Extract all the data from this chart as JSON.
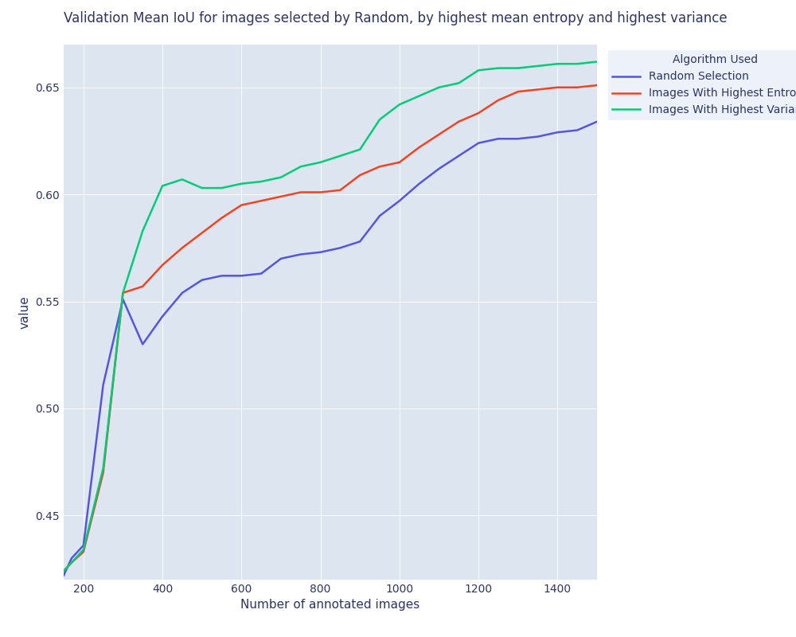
{
  "title": "Validation Mean IoU for images selected by Random, by highest mean entropy and highest variance",
  "xlabel": "Number of annotated images",
  "ylabel": "value",
  "legend_title": "Algorithm Used",
  "random": {
    "label": "Random Selection",
    "color": "#5555dd",
    "x": [
      150,
      170,
      200,
      250,
      300,
      350,
      400,
      450,
      500,
      550,
      600,
      650,
      700,
      750,
      800,
      850,
      900,
      950,
      1000,
      1050,
      1100,
      1150,
      1200,
      1250,
      1300,
      1350,
      1400,
      1450,
      1500
    ],
    "y": [
      0.422,
      0.43,
      0.436,
      0.511,
      0.551,
      0.53,
      0.543,
      0.554,
      0.56,
      0.562,
      0.562,
      0.563,
      0.57,
      0.572,
      0.573,
      0.575,
      0.578,
      0.59,
      0.597,
      0.605,
      0.612,
      0.618,
      0.624,
      0.626,
      0.626,
      0.627,
      0.629,
      0.63,
      0.634
    ]
  },
  "entropy": {
    "label": "Images With Highest Entropies",
    "color": "#ee4422",
    "x": [
      150,
      170,
      200,
      250,
      300,
      350,
      400,
      450,
      500,
      550,
      600,
      650,
      700,
      750,
      800,
      850,
      900,
      950,
      1000,
      1050,
      1100,
      1150,
      1200,
      1250,
      1300,
      1350,
      1400,
      1450,
      1500
    ],
    "y": [
      0.424,
      0.428,
      0.433,
      0.47,
      0.554,
      0.557,
      0.567,
      0.575,
      0.582,
      0.589,
      0.595,
      0.597,
      0.599,
      0.601,
      0.601,
      0.602,
      0.609,
      0.613,
      0.615,
      0.622,
      0.628,
      0.634,
      0.638,
      0.644,
      0.648,
      0.649,
      0.65,
      0.65,
      0.651
    ]
  },
  "variance": {
    "label": "Images With Highest Variance",
    "color": "#00cc77",
    "x": [
      150,
      170,
      200,
      250,
      300,
      350,
      400,
      450,
      500,
      550,
      600,
      650,
      700,
      750,
      800,
      850,
      900,
      950,
      1000,
      1050,
      1100,
      1150,
      1200,
      1250,
      1300,
      1350,
      1400,
      1450,
      1500
    ],
    "y": [
      0.424,
      0.428,
      0.434,
      0.472,
      0.554,
      0.583,
      0.604,
      0.607,
      0.603,
      0.603,
      0.605,
      0.606,
      0.608,
      0.613,
      0.615,
      0.618,
      0.621,
      0.635,
      0.642,
      0.646,
      0.65,
      0.652,
      0.658,
      0.659,
      0.659,
      0.66,
      0.661,
      0.661,
      0.662
    ]
  },
  "xlim": [
    150,
    1500
  ],
  "ylim": [
    0.42,
    0.67
  ],
  "plot_bg_color": "#dce5f0",
  "fig_bg_color": "#ffffff",
  "legend_bg_color": "#edf2fa",
  "grid_color": "#ffffff",
  "title_color": "#2d3560",
  "label_color": "#2d3560",
  "tick_color": "#2d3560",
  "title_fontsize": 12,
  "axis_fontsize": 11,
  "tick_fontsize": 10,
  "legend_fontsize": 10,
  "line_width": 1.8
}
